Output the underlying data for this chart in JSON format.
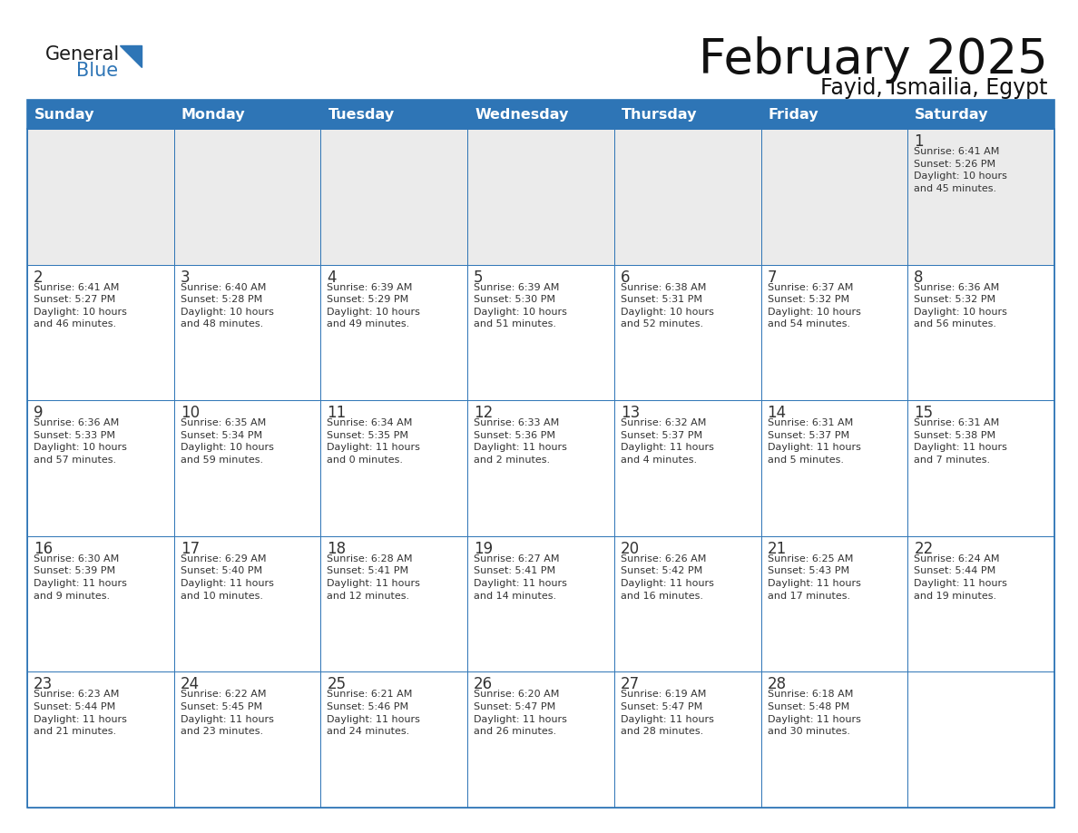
{
  "title": "February 2025",
  "subtitle": "Fayid, Ismailia, Egypt",
  "header_color": "#2E75B6",
  "header_text_color": "#FFFFFF",
  "row1_bg_color": "#EBEBEB",
  "cell_bg_color": "#FFFFFF",
  "border_color": "#2E75B6",
  "day_number_color": "#333333",
  "cell_text_color": "#333333",
  "days_of_week": [
    "Sunday",
    "Monday",
    "Tuesday",
    "Wednesday",
    "Thursday",
    "Friday",
    "Saturday"
  ],
  "weeks": [
    [
      {
        "day": null,
        "info": null
      },
      {
        "day": null,
        "info": null
      },
      {
        "day": null,
        "info": null
      },
      {
        "day": null,
        "info": null
      },
      {
        "day": null,
        "info": null
      },
      {
        "day": null,
        "info": null
      },
      {
        "day": "1",
        "info": "Sunrise: 6:41 AM\nSunset: 5:26 PM\nDaylight: 10 hours\nand 45 minutes."
      }
    ],
    [
      {
        "day": "2",
        "info": "Sunrise: 6:41 AM\nSunset: 5:27 PM\nDaylight: 10 hours\nand 46 minutes."
      },
      {
        "day": "3",
        "info": "Sunrise: 6:40 AM\nSunset: 5:28 PM\nDaylight: 10 hours\nand 48 minutes."
      },
      {
        "day": "4",
        "info": "Sunrise: 6:39 AM\nSunset: 5:29 PM\nDaylight: 10 hours\nand 49 minutes."
      },
      {
        "day": "5",
        "info": "Sunrise: 6:39 AM\nSunset: 5:30 PM\nDaylight: 10 hours\nand 51 minutes."
      },
      {
        "day": "6",
        "info": "Sunrise: 6:38 AM\nSunset: 5:31 PM\nDaylight: 10 hours\nand 52 minutes."
      },
      {
        "day": "7",
        "info": "Sunrise: 6:37 AM\nSunset: 5:32 PM\nDaylight: 10 hours\nand 54 minutes."
      },
      {
        "day": "8",
        "info": "Sunrise: 6:36 AM\nSunset: 5:32 PM\nDaylight: 10 hours\nand 56 minutes."
      }
    ],
    [
      {
        "day": "9",
        "info": "Sunrise: 6:36 AM\nSunset: 5:33 PM\nDaylight: 10 hours\nand 57 minutes."
      },
      {
        "day": "10",
        "info": "Sunrise: 6:35 AM\nSunset: 5:34 PM\nDaylight: 10 hours\nand 59 minutes."
      },
      {
        "day": "11",
        "info": "Sunrise: 6:34 AM\nSunset: 5:35 PM\nDaylight: 11 hours\nand 0 minutes."
      },
      {
        "day": "12",
        "info": "Sunrise: 6:33 AM\nSunset: 5:36 PM\nDaylight: 11 hours\nand 2 minutes."
      },
      {
        "day": "13",
        "info": "Sunrise: 6:32 AM\nSunset: 5:37 PM\nDaylight: 11 hours\nand 4 minutes."
      },
      {
        "day": "14",
        "info": "Sunrise: 6:31 AM\nSunset: 5:37 PM\nDaylight: 11 hours\nand 5 minutes."
      },
      {
        "day": "15",
        "info": "Sunrise: 6:31 AM\nSunset: 5:38 PM\nDaylight: 11 hours\nand 7 minutes."
      }
    ],
    [
      {
        "day": "16",
        "info": "Sunrise: 6:30 AM\nSunset: 5:39 PM\nDaylight: 11 hours\nand 9 minutes."
      },
      {
        "day": "17",
        "info": "Sunrise: 6:29 AM\nSunset: 5:40 PM\nDaylight: 11 hours\nand 10 minutes."
      },
      {
        "day": "18",
        "info": "Sunrise: 6:28 AM\nSunset: 5:41 PM\nDaylight: 11 hours\nand 12 minutes."
      },
      {
        "day": "19",
        "info": "Sunrise: 6:27 AM\nSunset: 5:41 PM\nDaylight: 11 hours\nand 14 minutes."
      },
      {
        "day": "20",
        "info": "Sunrise: 6:26 AM\nSunset: 5:42 PM\nDaylight: 11 hours\nand 16 minutes."
      },
      {
        "day": "21",
        "info": "Sunrise: 6:25 AM\nSunset: 5:43 PM\nDaylight: 11 hours\nand 17 minutes."
      },
      {
        "day": "22",
        "info": "Sunrise: 6:24 AM\nSunset: 5:44 PM\nDaylight: 11 hours\nand 19 minutes."
      }
    ],
    [
      {
        "day": "23",
        "info": "Sunrise: 6:23 AM\nSunset: 5:44 PM\nDaylight: 11 hours\nand 21 minutes."
      },
      {
        "day": "24",
        "info": "Sunrise: 6:22 AM\nSunset: 5:45 PM\nDaylight: 11 hours\nand 23 minutes."
      },
      {
        "day": "25",
        "info": "Sunrise: 6:21 AM\nSunset: 5:46 PM\nDaylight: 11 hours\nand 24 minutes."
      },
      {
        "day": "26",
        "info": "Sunrise: 6:20 AM\nSunset: 5:47 PM\nDaylight: 11 hours\nand 26 minutes."
      },
      {
        "day": "27",
        "info": "Sunrise: 6:19 AM\nSunset: 5:47 PM\nDaylight: 11 hours\nand 28 minutes."
      },
      {
        "day": "28",
        "info": "Sunrise: 6:18 AM\nSunset: 5:48 PM\nDaylight: 11 hours\nand 30 minutes."
      },
      {
        "day": null,
        "info": null
      }
    ]
  ],
  "logo_general_color": "#1a1a1a",
  "logo_blue_color": "#2E75B6",
  "logo_triangle_color": "#2E75B6"
}
